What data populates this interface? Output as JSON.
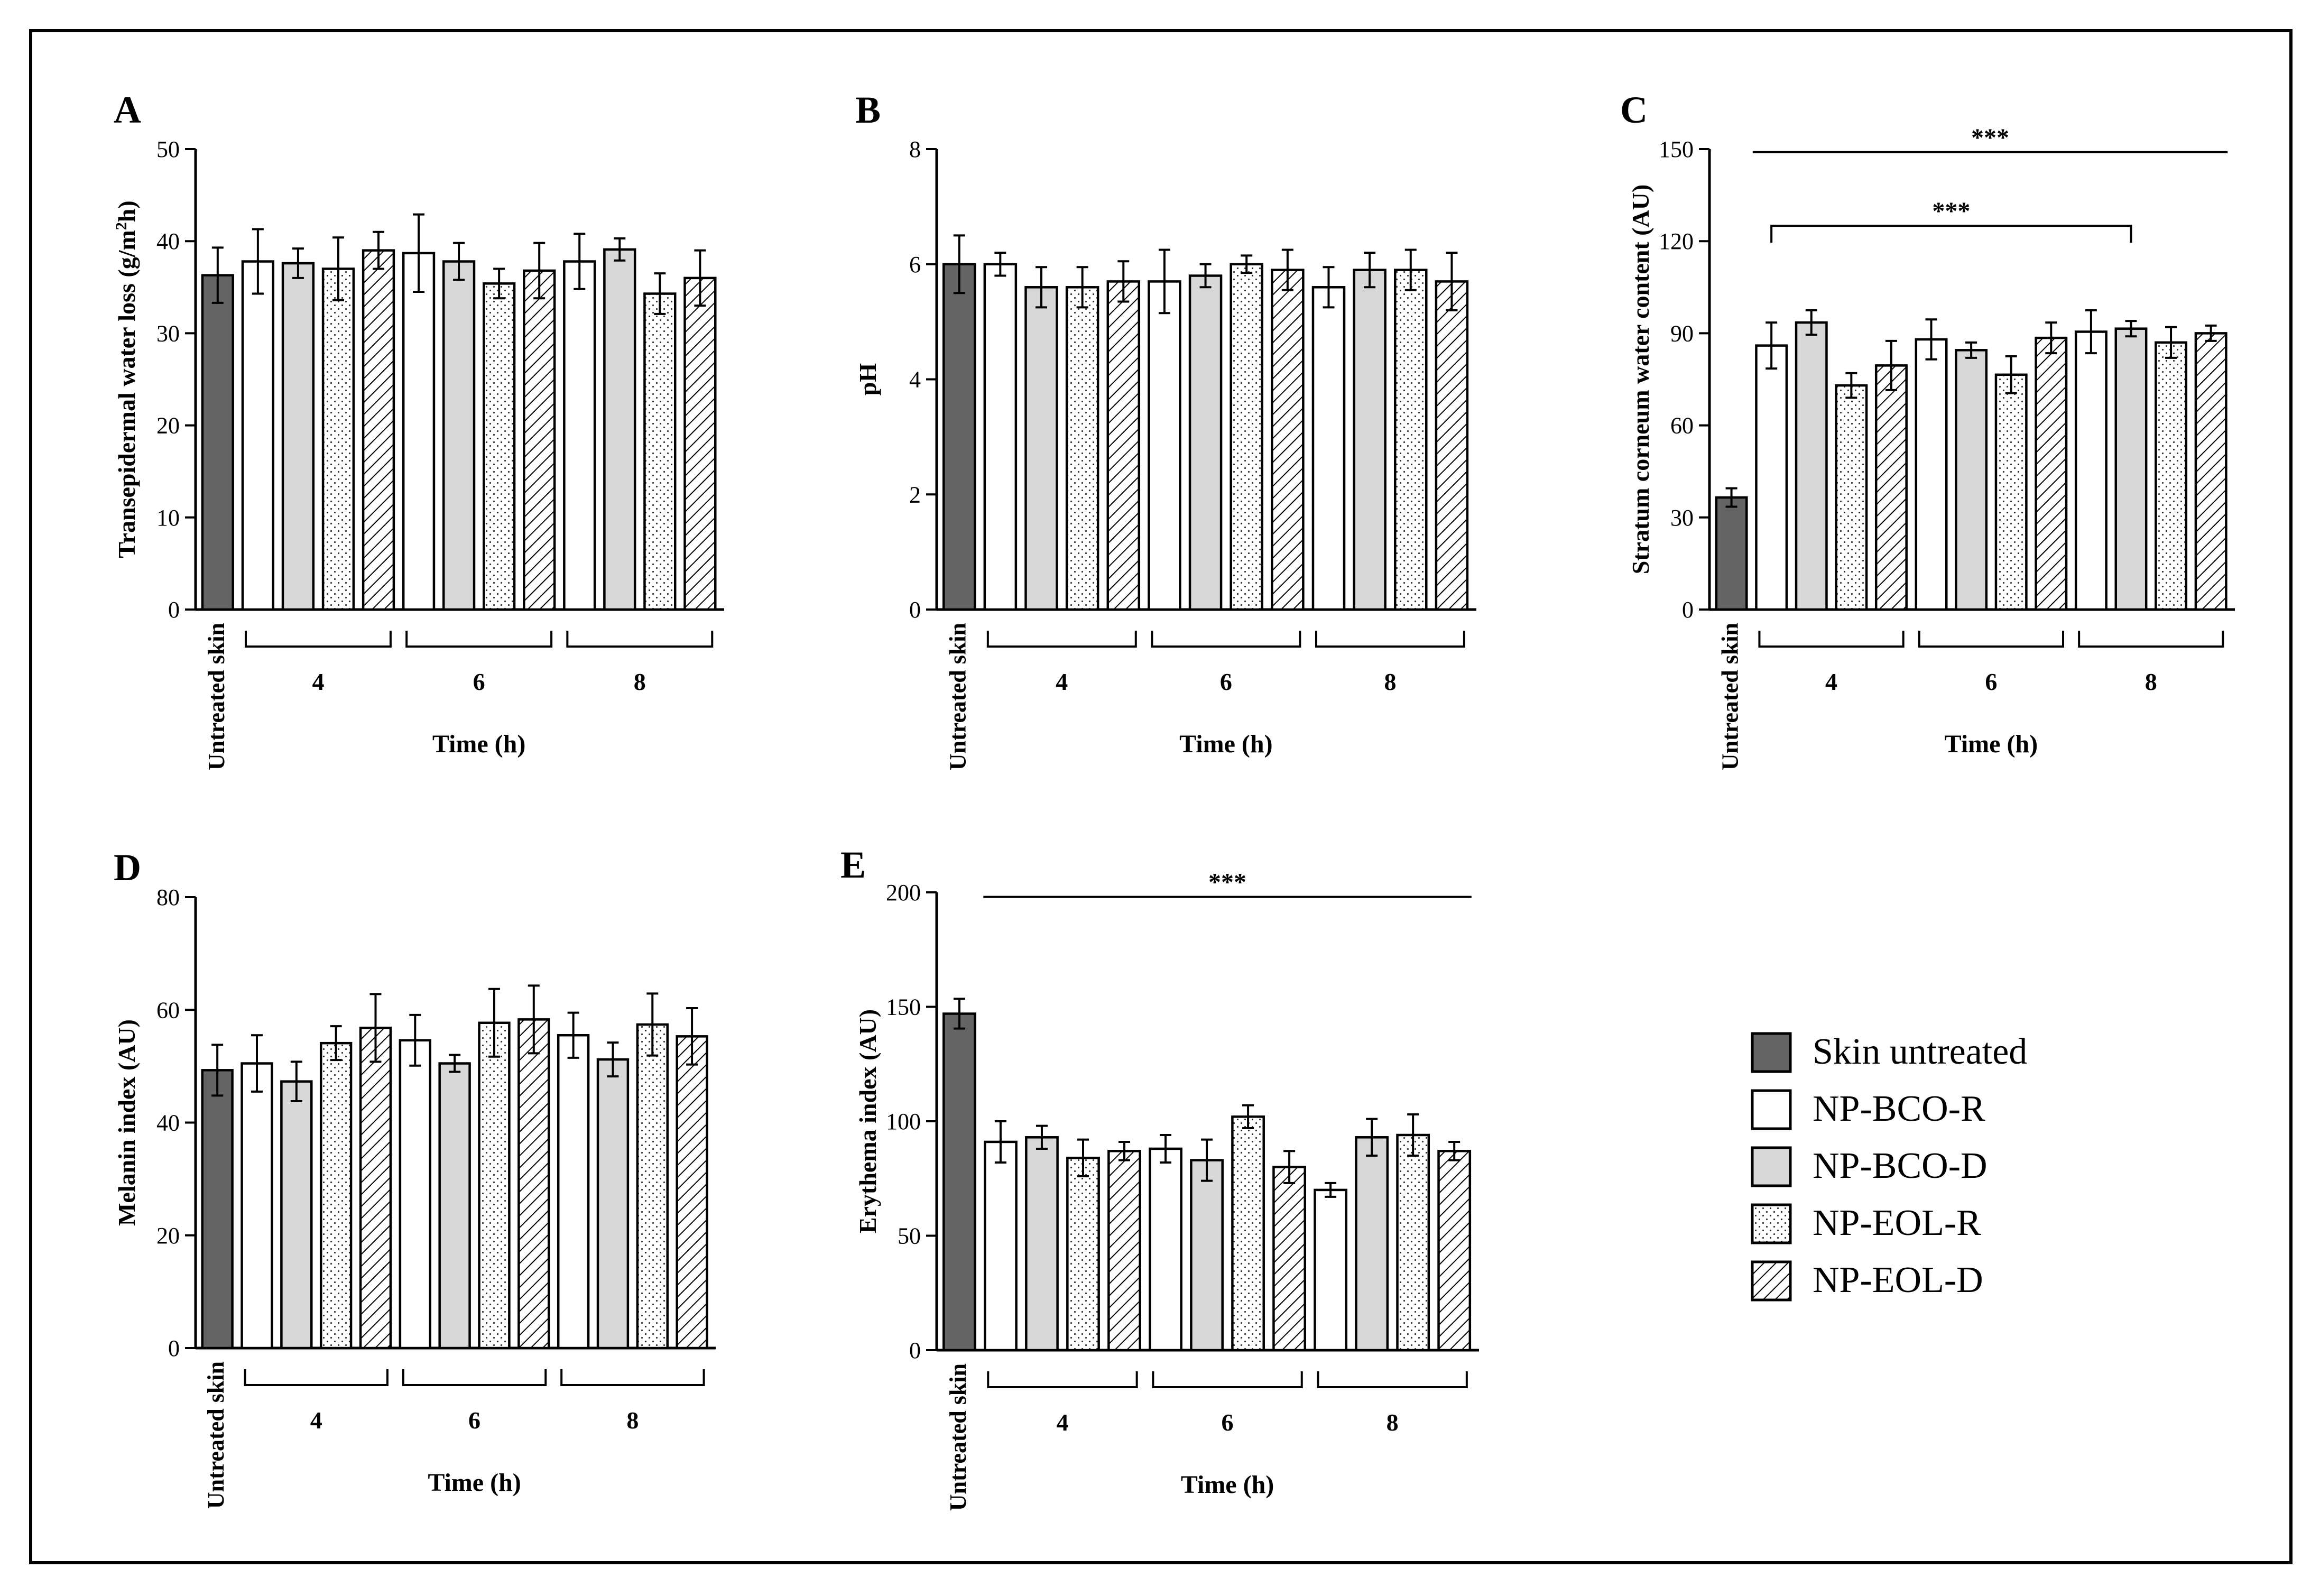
{
  "colors": {
    "untreated": "#646464",
    "bco_r": "#ffffff",
    "bco_d": "#d8d8d8",
    "eol_r": "#f2f2f2",
    "eol_d": "#ffffff",
    "ink": "#000000"
  },
  "legend": {
    "items": [
      {
        "label": "Skin untreated",
        "style": "dark"
      },
      {
        "label": "NP-BCO-R",
        "style": "white"
      },
      {
        "label": "NP-BCO-D",
        "style": "gray"
      },
      {
        "label": "NP-EOL-R",
        "style": "dots"
      },
      {
        "label": "NP-EOL-D",
        "style": "hatch"
      }
    ]
  },
  "chart_data": [
    {
      "type": "bar",
      "panel": "A",
      "ylabel_parts": [
        "Transepidermal water loss (g/m",
        "2",
        "h)"
      ],
      "xlabel": "Time (h)",
      "ylim": [
        0,
        50
      ],
      "yticks": [
        0,
        10,
        20,
        30,
        40,
        50
      ],
      "baseline_label": "Untreated skin",
      "groups": [
        "4",
        "6",
        "8"
      ],
      "series_names": [
        "NP-BCO-R",
        "NP-BCO-D",
        "NP-EOL-R",
        "NP-EOL-D"
      ],
      "untreated": {
        "value": 36.3,
        "err": 3.0
      },
      "values": [
        [
          37.8,
          37.6,
          37.0,
          39.0
        ],
        [
          38.7,
          37.8,
          35.4,
          36.8
        ],
        [
          37.8,
          39.1,
          34.3,
          36.0
        ]
      ],
      "errors": [
        [
          3.5,
          1.6,
          3.4,
          2.0
        ],
        [
          4.2,
          2.0,
          1.6,
          3.0
        ],
        [
          3.0,
          1.2,
          2.2,
          3.0
        ]
      ],
      "significance": []
    },
    {
      "type": "bar",
      "panel": "B",
      "ylabel_parts": [
        "pH"
      ],
      "xlabel": "Time (h)",
      "ylim": [
        0,
        8
      ],
      "yticks": [
        0,
        2,
        4,
        6,
        8
      ],
      "baseline_label": "Untreated skin",
      "groups": [
        "4",
        "6",
        "8"
      ],
      "series_names": [
        "NP-BCO-R",
        "NP-BCO-D",
        "NP-EOL-R",
        "NP-EOL-D"
      ],
      "untreated": {
        "value": 6.0,
        "err": 0.5
      },
      "values": [
        [
          6.0,
          5.6,
          5.6,
          5.7
        ],
        [
          5.7,
          5.8,
          6.0,
          5.9
        ],
        [
          5.6,
          5.9,
          5.9,
          5.7
        ]
      ],
      "errors": [
        [
          0.2,
          0.35,
          0.35,
          0.35
        ],
        [
          0.55,
          0.2,
          0.15,
          0.35
        ],
        [
          0.35,
          0.3,
          0.35,
          0.5
        ]
      ],
      "significance": []
    },
    {
      "type": "bar",
      "panel": "C",
      "ylabel_parts": [
        "Stratum corneum water content (AU)"
      ],
      "xlabel": "Time (h)",
      "ylim": [
        0,
        150
      ],
      "yticks": [
        0,
        30,
        60,
        90,
        120,
        150
      ],
      "baseline_label": "Untreated skin",
      "groups": [
        "4",
        "6",
        "8"
      ],
      "series_names": [
        "NP-BCO-R",
        "NP-BCO-D",
        "NP-EOL-R",
        "NP-EOL-D"
      ],
      "untreated": {
        "value": 36.5,
        "err": 3.0
      },
      "values": [
        [
          86.0,
          93.5,
          73.0,
          79.5
        ],
        [
          88.0,
          84.5,
          76.5,
          88.5
        ],
        [
          90.5,
          91.5,
          87.0,
          90.0
        ]
      ],
      "errors": [
        [
          7.5,
          4.0,
          4.0,
          8.0
        ],
        [
          6.5,
          2.5,
          6.0,
          5.0
        ],
        [
          7.0,
          2.5,
          5.0,
          2.5
        ]
      ],
      "significance": [
        {
          "label": "***",
          "y": 149,
          "from": "untreated",
          "to": "last",
          "kind": "line"
        },
        {
          "label": "***",
          "y": 125,
          "from": 1,
          "to": 10,
          "kind": "bracket"
        }
      ]
    },
    {
      "type": "bar",
      "panel": "D",
      "ylabel_parts": [
        "Melanin index (AU)"
      ],
      "xlabel": "Time (h)",
      "ylim": [
        0,
        80
      ],
      "yticks": [
        0,
        20,
        40,
        60,
        80
      ],
      "baseline_label": "Untreated skin",
      "groups": [
        "4",
        "6",
        "8"
      ],
      "series_names": [
        "NP-BCO-R",
        "NP-BCO-D",
        "NP-EOL-R",
        "NP-EOL-D"
      ],
      "untreated": {
        "value": 49.3,
        "err": 4.5
      },
      "values": [
        [
          50.5,
          47.3,
          54.1,
          56.8
        ],
        [
          54.6,
          50.5,
          57.7,
          58.3
        ],
        [
          55.5,
          51.2,
          57.4,
          55.3
        ]
      ],
      "errors": [
        [
          5.0,
          3.5,
          3.0,
          6.0
        ],
        [
          4.5,
          1.5,
          6.0,
          6.0
        ],
        [
          4.0,
          3.0,
          5.5,
          5.0
        ]
      ],
      "significance": []
    },
    {
      "type": "bar",
      "panel": "E",
      "ylabel_parts": [
        "Erythema index (AU)"
      ],
      "xlabel": "Time (h)",
      "ylim": [
        0,
        200
      ],
      "yticks": [
        0,
        50,
        100,
        150,
        200
      ],
      "baseline_label": "Untreated skin",
      "groups": [
        "4",
        "6",
        "8"
      ],
      "series_names": [
        "NP-BCO-R",
        "NP-BCO-D",
        "NP-EOL-R",
        "NP-EOL-D"
      ],
      "untreated": {
        "value": 147.0,
        "err": 6.5
      },
      "values": [
        [
          91.0,
          93.0,
          84.0,
          87.0
        ],
        [
          88.0,
          83.0,
          102.0,
          80.0
        ],
        [
          70.0,
          93.0,
          94.0,
          87.0
        ]
      ],
      "errors": [
        [
          9.0,
          5.0,
          8.0,
          4.0
        ],
        [
          6.0,
          9.0,
          5.0,
          7.0
        ],
        [
          3.0,
          8.0,
          9.0,
          4.0
        ]
      ],
      "significance": [
        {
          "label": "***",
          "y": 198,
          "from": "first",
          "to": "last",
          "kind": "line"
        }
      ]
    }
  ]
}
